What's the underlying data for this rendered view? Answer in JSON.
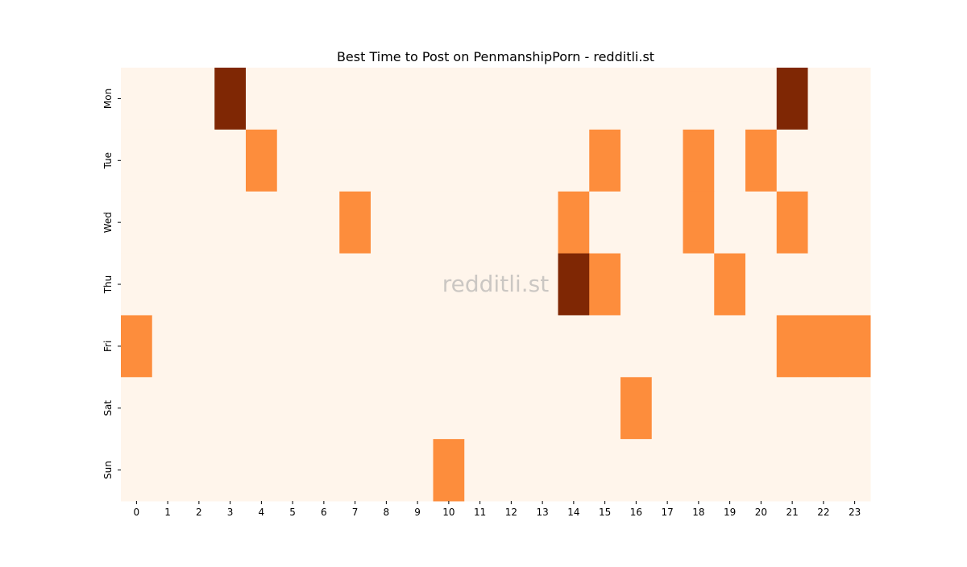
{
  "chart_data": {
    "type": "heatmap",
    "title": "Best Time to Post on PenmanshipPorn - redditli.st",
    "watermark": "redditli.st",
    "xlabel": "",
    "ylabel": "",
    "x_categories": [
      "0",
      "1",
      "2",
      "3",
      "4",
      "5",
      "6",
      "7",
      "8",
      "9",
      "10",
      "11",
      "12",
      "13",
      "14",
      "15",
      "16",
      "17",
      "18",
      "19",
      "20",
      "21",
      "22",
      "23"
    ],
    "y_categories": [
      "Mon",
      "Tue",
      "Wed",
      "Thu",
      "Fri",
      "Sat",
      "Sun"
    ],
    "values": [
      [
        0,
        0,
        0,
        2,
        0,
        0,
        0,
        0,
        0,
        0,
        0,
        0,
        0,
        0,
        0,
        0,
        0,
        0,
        0,
        0,
        0,
        2,
        0,
        0
      ],
      [
        0,
        0,
        0,
        0,
        1,
        0,
        0,
        0,
        0,
        0,
        0,
        0,
        0,
        0,
        0,
        1,
        0,
        0,
        1,
        0,
        1,
        0,
        0,
        0
      ],
      [
        0,
        0,
        0,
        0,
        0,
        0,
        0,
        1,
        0,
        0,
        0,
        0,
        0,
        0,
        1,
        0,
        0,
        0,
        1,
        0,
        0,
        1,
        0,
        0
      ],
      [
        0,
        0,
        0,
        0,
        0,
        0,
        0,
        0,
        0,
        0,
        0,
        0,
        0,
        0,
        2,
        1,
        0,
        0,
        0,
        1,
        0,
        0,
        0,
        0
      ],
      [
        1,
        0,
        0,
        0,
        0,
        0,
        0,
        0,
        0,
        0,
        0,
        0,
        0,
        0,
        0,
        0,
        0,
        0,
        0,
        0,
        0,
        1,
        1,
        1
      ],
      [
        0,
        0,
        0,
        0,
        0,
        0,
        0,
        0,
        0,
        0,
        0,
        0,
        0,
        0,
        0,
        0,
        1,
        0,
        0,
        0,
        0,
        0,
        0,
        0
      ],
      [
        0,
        0,
        0,
        0,
        0,
        0,
        0,
        0,
        0,
        0,
        1,
        0,
        0,
        0,
        0,
        0,
        0,
        0,
        0,
        0,
        0,
        0,
        0,
        0
      ]
    ],
    "colormap": [
      "#fff5eb",
      "#fd8d3c",
      "#7f2704"
    ],
    "colorbar": false,
    "grid": false
  }
}
